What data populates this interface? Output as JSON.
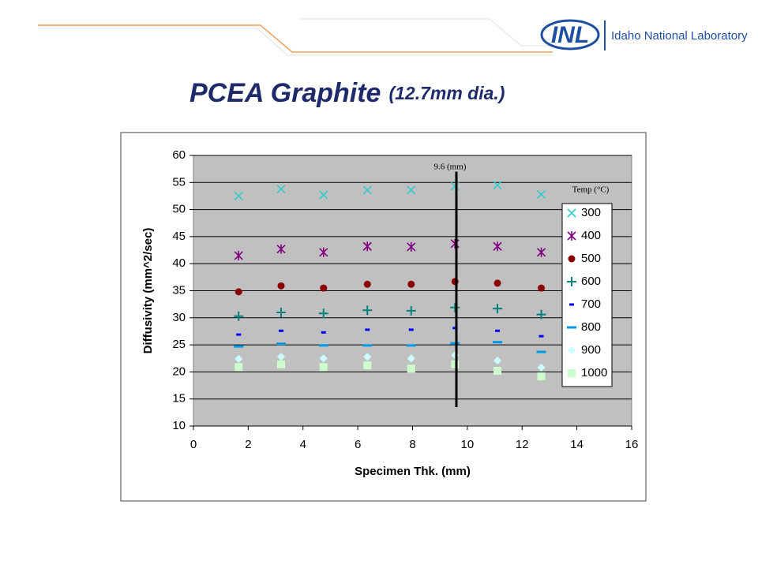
{
  "slide": {
    "title": "PCEA Graphite",
    "subtitle": "(12.7mm dia.)",
    "logo": "INL",
    "organization": "Idaho National Laboratory"
  },
  "chart_data": {
    "type": "scatter",
    "x_label": "Specimen Thk. (mm)",
    "y_label": "Diffusivity (mm^2/sec)",
    "xlim": [
      0,
      16
    ],
    "xticks": [
      0,
      2,
      4,
      6,
      8,
      10,
      12,
      14,
      16
    ],
    "ylim": [
      10,
      60
    ],
    "yticks": [
      10,
      15,
      20,
      25,
      30,
      35,
      40,
      45,
      50,
      55,
      60
    ],
    "grid": true,
    "legend_title": "Temp (°C)",
    "legend": "right",
    "annotation": {
      "x": 9.6,
      "label": "9.6 (mm)"
    },
    "x": [
      1.65,
      3.2,
      4.75,
      6.35,
      7.95,
      9.55,
      11.1,
      12.7
    ],
    "series": [
      {
        "name": "300",
        "color": "#33cccc",
        "marker": "x",
        "values": [
          52.5,
          53.8,
          52.7,
          53.6,
          53.6,
          54.3,
          54.5,
          52.8
        ]
      },
      {
        "name": "400",
        "color": "#800080",
        "marker": "star",
        "values": [
          41.5,
          42.7,
          42.1,
          43.2,
          43.1,
          43.7,
          43.2,
          42.1
        ]
      },
      {
        "name": "500",
        "color": "#8b0000",
        "marker": "circle",
        "values": [
          34.8,
          35.9,
          35.5,
          36.2,
          36.2,
          36.7,
          36.4,
          35.5
        ]
      },
      {
        "name": "600",
        "color": "#008080",
        "marker": "plus",
        "values": [
          30.3,
          31.0,
          30.8,
          31.4,
          31.3,
          31.9,
          31.7,
          30.6
        ]
      },
      {
        "name": "700",
        "color": "#0000ff",
        "marker": "small-dash",
        "values": [
          26.9,
          27.6,
          27.3,
          27.8,
          27.8,
          28.1,
          27.6,
          26.6
        ]
      },
      {
        "name": "800",
        "color": "#0099e6",
        "marker": "dash",
        "values": [
          24.7,
          25.2,
          24.9,
          24.9,
          24.9,
          25.3,
          25.5,
          23.7
        ]
      },
      {
        "name": "900",
        "color": "#ccffff",
        "marker": "diamond",
        "values": [
          22.4,
          22.8,
          22.5,
          22.8,
          22.5,
          23.1,
          22.1,
          20.8
        ]
      },
      {
        "name": "1000",
        "color": "#ccffcc",
        "marker": "square",
        "values": [
          20.9,
          21.4,
          20.9,
          21.2,
          20.6,
          21.4,
          20.2,
          19.2
        ]
      }
    ]
  }
}
